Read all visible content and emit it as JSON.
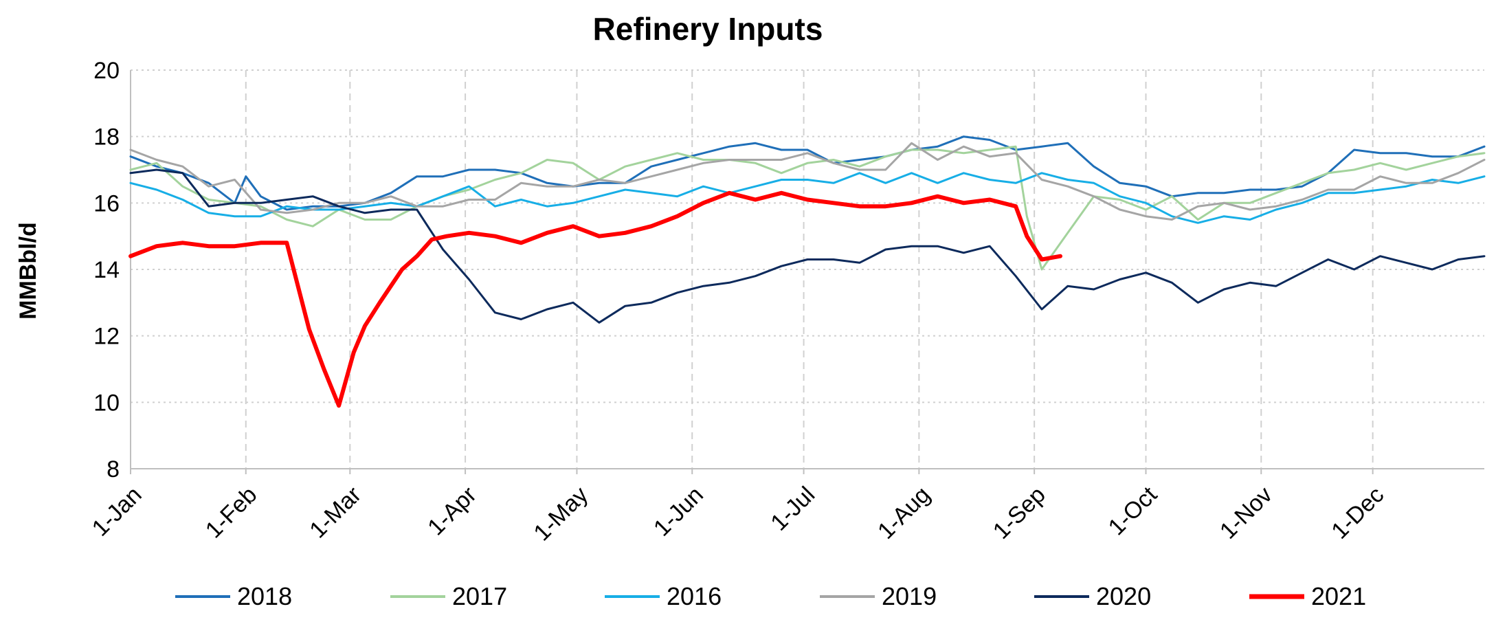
{
  "chart_data": {
    "type": "line",
    "title": "Refinery Inputs",
    "xlabel": "",
    "ylabel": "MMBbl/d",
    "ylim": [
      8,
      20
    ],
    "yticks": [
      8,
      10,
      12,
      14,
      16,
      18,
      20
    ],
    "x_range_days": [
      0,
      364
    ],
    "x_ticks": [
      {
        "label": "1-Jan",
        "day": 0
      },
      {
        "label": "1-Feb",
        "day": 31
      },
      {
        "label": "1-Mar",
        "day": 59
      },
      {
        "label": "1-Apr",
        "day": 90
      },
      {
        "label": "1-May",
        "day": 120
      },
      {
        "label": "1-Jun",
        "day": 151
      },
      {
        "label": "1-Jul",
        "day": 181
      },
      {
        "label": "1-Aug",
        "day": 212
      },
      {
        "label": "1-Sep",
        "day": 243
      },
      {
        "label": "1-Oct",
        "day": 273
      },
      {
        "label": "1-Nov",
        "day": 304
      },
      {
        "label": "1-Dec",
        "day": 334
      }
    ],
    "grid": true,
    "legend_position": "bottom",
    "series": [
      {
        "name": "2018",
        "color": "#1f6fb8",
        "width": 3,
        "x": [
          0,
          7,
          14,
          21,
          28,
          31,
          35,
          42,
          49,
          56,
          63,
          70,
          77,
          84,
          91,
          98,
          105,
          112,
          119,
          126,
          133,
          140,
          147,
          154,
          161,
          168,
          175,
          182,
          189,
          196,
          203,
          210,
          217,
          224,
          231,
          238,
          245,
          252,
          259,
          266,
          273,
          280,
          287,
          294,
          301,
          308,
          315,
          322,
          329,
          336,
          343,
          350,
          357,
          364
        ],
        "y": [
          17.4,
          17.1,
          16.9,
          16.6,
          16.0,
          16.8,
          16.2,
          15.8,
          15.9,
          15.9,
          16.0,
          16.3,
          16.8,
          16.8,
          17.0,
          17.0,
          16.9,
          16.6,
          16.5,
          16.6,
          16.6,
          17.1,
          17.3,
          17.5,
          17.7,
          17.8,
          17.6,
          17.6,
          17.2,
          17.3,
          17.4,
          17.6,
          17.7,
          18.0,
          17.9,
          17.6,
          17.7,
          17.8,
          17.1,
          16.6,
          16.5,
          16.2,
          16.3,
          16.3,
          16.4,
          16.4,
          16.5,
          16.9,
          17.6,
          17.5,
          17.5,
          17.4,
          17.4,
          17.7
        ]
      },
      {
        "name": "2017",
        "color": "#a3d39c",
        "width": 3,
        "x": [
          0,
          7,
          14,
          21,
          28,
          35,
          42,
          49,
          56,
          63,
          70,
          77,
          84,
          91,
          98,
          105,
          112,
          119,
          126,
          133,
          140,
          147,
          154,
          161,
          168,
          175,
          182,
          189,
          196,
          203,
          210,
          217,
          224,
          231,
          238,
          241,
          245,
          252,
          259,
          266,
          273,
          280,
          287,
          294,
          301,
          308,
          315,
          322,
          329,
          336,
          343,
          350,
          357,
          364
        ],
        "y": [
          17.0,
          17.2,
          16.5,
          16.1,
          16.0,
          15.9,
          15.5,
          15.3,
          15.8,
          15.5,
          15.5,
          15.9,
          16.2,
          16.4,
          16.7,
          16.9,
          17.3,
          17.2,
          16.7,
          17.1,
          17.3,
          17.5,
          17.3,
          17.3,
          17.2,
          16.9,
          17.2,
          17.3,
          17.1,
          17.4,
          17.6,
          17.6,
          17.5,
          17.6,
          17.7,
          15.6,
          14.0,
          15.1,
          16.2,
          16.1,
          15.8,
          16.2,
          15.5,
          16.0,
          16.0,
          16.3,
          16.6,
          16.9,
          17.0,
          17.2,
          17.0,
          17.2,
          17.4,
          17.5
        ]
      },
      {
        "name": "2016",
        "color": "#17aee6",
        "width": 3,
        "x": [
          0,
          7,
          14,
          21,
          28,
          35,
          42,
          49,
          56,
          63,
          70,
          77,
          84,
          91,
          98,
          105,
          112,
          119,
          126,
          133,
          140,
          147,
          154,
          161,
          168,
          175,
          182,
          189,
          196,
          203,
          210,
          217,
          224,
          231,
          238,
          245,
          252,
          259,
          266,
          273,
          280,
          287,
          294,
          301,
          308,
          315,
          322,
          329,
          336,
          343,
          350,
          357,
          364
        ],
        "y": [
          16.6,
          16.4,
          16.1,
          15.7,
          15.6,
          15.6,
          15.9,
          15.8,
          15.8,
          15.9,
          16.0,
          15.9,
          16.2,
          16.5,
          15.9,
          16.1,
          15.9,
          16.0,
          16.2,
          16.4,
          16.3,
          16.2,
          16.5,
          16.3,
          16.5,
          16.7,
          16.7,
          16.6,
          16.9,
          16.6,
          16.9,
          16.6,
          16.9,
          16.7,
          16.6,
          16.9,
          16.7,
          16.6,
          16.2,
          16.0,
          15.6,
          15.4,
          15.6,
          15.5,
          15.8,
          16.0,
          16.3,
          16.3,
          16.4,
          16.5,
          16.7,
          16.6,
          16.8
        ]
      },
      {
        "name": "2019",
        "color": "#a5a5a5",
        "width": 3,
        "x": [
          0,
          7,
          14,
          21,
          28,
          35,
          42,
          49,
          56,
          63,
          70,
          77,
          84,
          91,
          98,
          105,
          112,
          119,
          126,
          133,
          140,
          147,
          154,
          161,
          168,
          175,
          182,
          189,
          196,
          203,
          210,
          217,
          224,
          231,
          238,
          245,
          252,
          259,
          266,
          273,
          280,
          287,
          294,
          301,
          308,
          315,
          322,
          329,
          336,
          343,
          350,
          357,
          364
        ],
        "y": [
          17.6,
          17.3,
          17.1,
          16.5,
          16.7,
          15.8,
          15.7,
          15.8,
          16.0,
          16.0,
          16.2,
          15.9,
          15.9,
          16.1,
          16.1,
          16.6,
          16.5,
          16.5,
          16.7,
          16.6,
          16.8,
          17.0,
          17.2,
          17.3,
          17.3,
          17.3,
          17.5,
          17.2,
          17.0,
          17.0,
          17.8,
          17.3,
          17.7,
          17.4,
          17.5,
          16.7,
          16.5,
          16.2,
          15.8,
          15.6,
          15.5,
          15.9,
          16.0,
          15.8,
          15.9,
          16.1,
          16.4,
          16.4,
          16.8,
          16.6,
          16.6,
          16.9,
          17.3
        ]
      },
      {
        "name": "2020",
        "color": "#0d2a5c",
        "width": 3,
        "x": [
          0,
          7,
          14,
          21,
          28,
          35,
          42,
          49,
          56,
          63,
          70,
          77,
          84,
          91,
          98,
          105,
          112,
          119,
          126,
          133,
          140,
          147,
          154,
          161,
          168,
          175,
          182,
          189,
          196,
          203,
          210,
          217,
          224,
          231,
          238,
          245,
          252,
          259,
          266,
          273,
          280,
          287,
          294,
          301,
          308,
          315,
          322,
          329,
          336,
          343,
          350,
          357,
          364
        ],
        "y": [
          16.9,
          17.0,
          16.9,
          15.9,
          16.0,
          16.0,
          16.1,
          16.2,
          15.9,
          15.7,
          15.8,
          15.8,
          14.6,
          13.7,
          12.7,
          12.5,
          12.8,
          13.0,
          12.4,
          12.9,
          13.0,
          13.3,
          13.5,
          13.6,
          13.8,
          14.1,
          14.3,
          14.3,
          14.2,
          14.6,
          14.7,
          14.7,
          14.5,
          14.7,
          13.8,
          12.8,
          13.5,
          13.4,
          13.7,
          13.9,
          13.6,
          13.0,
          13.4,
          13.6,
          13.5,
          13.9,
          14.3,
          14.0,
          14.4,
          14.2,
          14.0,
          14.3,
          14.4
        ]
      },
      {
        "name": "2021",
        "color": "#ff0000",
        "width": 6,
        "x": [
          0,
          7,
          14,
          21,
          28,
          35,
          42,
          48,
          52,
          56,
          60,
          63,
          67,
          70,
          73,
          77,
          81,
          85,
          91,
          98,
          105,
          112,
          119,
          126,
          133,
          140,
          147,
          154,
          161,
          168,
          175,
          182,
          189,
          196,
          203,
          210,
          217,
          224,
          231,
          238,
          241,
          245,
          250
        ],
        "y": [
          14.4,
          14.7,
          14.8,
          14.7,
          14.7,
          14.8,
          14.8,
          12.2,
          11.0,
          9.9,
          11.5,
          12.3,
          13.0,
          13.5,
          14.0,
          14.4,
          14.9,
          15.0,
          15.1,
          15.0,
          14.8,
          15.1,
          15.3,
          15.0,
          15.1,
          15.3,
          15.6,
          16.0,
          16.3,
          16.1,
          16.3,
          16.1,
          16.0,
          15.9,
          15.9,
          16.0,
          16.2,
          16.0,
          16.1,
          15.9,
          15.0,
          14.3,
          14.4
        ]
      }
    ]
  }
}
